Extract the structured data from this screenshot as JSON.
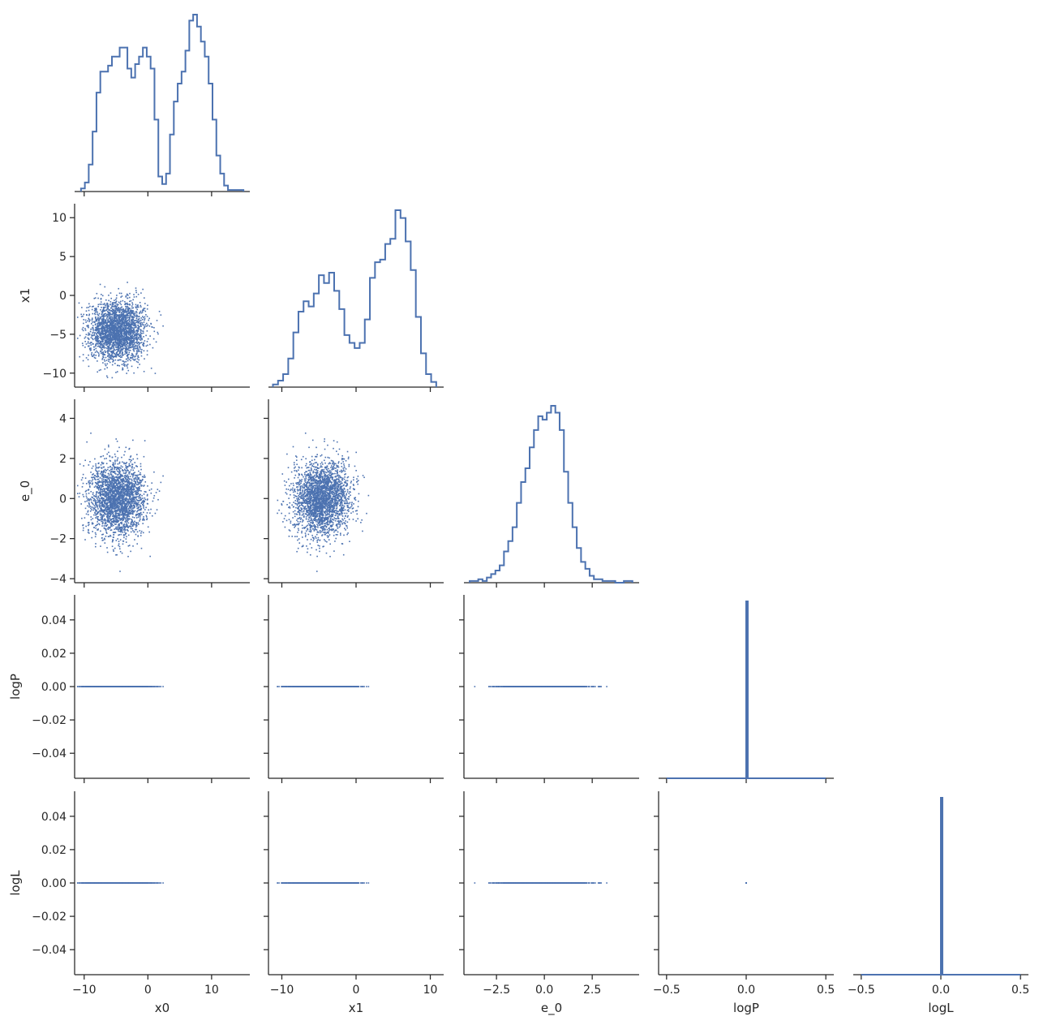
{
  "chart_data": {
    "type": "scatter",
    "title": "",
    "variables": [
      {
        "name": "x0",
        "lim": [
          -11.5,
          16.0
        ],
        "ticks": [
          -10,
          0,
          10
        ],
        "tick_labels": [
          "−10",
          "0",
          "10"
        ]
      },
      {
        "name": "x1",
        "lim": [
          -11.8,
          11.8
        ],
        "ticks": [
          -10,
          0,
          10
        ],
        "tick_labels": [
          "−10",
          "0",
          "10"
        ]
      },
      {
        "name": "e_0",
        "lim": [
          -4.2,
          4.95
        ],
        "ticks": [
          -2.5,
          0,
          2.5
        ],
        "tick_labels": [
          "−2.5",
          "0.0",
          "2.5"
        ]
      },
      {
        "name": "logP",
        "lim": [
          -0.55,
          0.55
        ],
        "ticks": [
          -0.5,
          0,
          0.5
        ],
        "tick_labels": [
          "−0.5",
          "0.0",
          "0.5"
        ]
      },
      {
        "name": "logL",
        "lim": [
          -0.55,
          0.55
        ],
        "ticks": [
          -0.5,
          0,
          0.5
        ],
        "tick_labels": [
          "−0.5",
          "0.0",
          "0.5"
        ]
      }
    ],
    "row_axes": [
      null,
      {
        "lim": [
          -11.8,
          11.8
        ],
        "ticks": [
          10,
          5,
          0,
          -5,
          -10
        ],
        "tick_labels": [
          "10",
          "5",
          "0",
          "−5",
          "−10"
        ]
      },
      {
        "lim": [
          -4.2,
          4.95
        ],
        "ticks": [
          4,
          2,
          0,
          -2,
          -4
        ],
        "tick_labels": [
          "4",
          "2",
          "0",
          "−2",
          "−4"
        ]
      },
      {
        "lim": [
          -0.055,
          0.055
        ],
        "ticks": [
          0.04,
          0.02,
          0,
          -0.02,
          -0.04
        ],
        "tick_labels": [
          "0.04",
          "0.02",
          "0.00",
          "−0.02",
          "−0.04"
        ]
      },
      {
        "lim": [
          -0.055,
          0.055
        ],
        "ticks": [
          0.04,
          0.02,
          0,
          -0.02,
          -0.04
        ],
        "tick_labels": [
          "0.04",
          "0.02",
          "0.00",
          "−0.02",
          "−0.04"
        ]
      }
    ],
    "histograms": {
      "x0": {
        "bin_edges_range": [
          -10.5,
          15.0
        ],
        "counts": [
          2,
          6,
          18,
          40,
          66,
          80,
          80,
          84,
          90,
          90,
          96,
          96,
          82,
          76,
          85,
          90,
          96,
          90,
          82,
          48,
          10,
          5,
          12,
          38,
          60,
          72,
          80,
          94,
          114,
          118,
          110,
          100,
          90,
          72,
          48,
          24,
          12,
          4,
          1,
          1,
          1,
          1
        ]
      },
      "x1": {
        "bin_edges_range": [
          -11.2,
          10.8
        ],
        "counts": [
          2,
          5,
          10,
          22,
          42,
          58,
          66,
          62,
          72,
          86,
          80,
          88,
          74,
          60,
          40,
          34,
          30,
          34,
          52,
          84,
          96,
          98,
          110,
          114,
          136,
          130,
          112,
          90,
          54,
          26,
          10,
          4
        ]
      },
      "e_0": {
        "bin_edges_range": [
          -3.9,
          4.6
        ],
        "counts": [
          1,
          1,
          2,
          1,
          3,
          5,
          7,
          10,
          18,
          24,
          32,
          46,
          58,
          66,
          78,
          88,
          96,
          94,
          98,
          102,
          98,
          88,
          64,
          46,
          32,
          20,
          12,
          8,
          4,
          2,
          2,
          1,
          1,
          1,
          0,
          0,
          1,
          1
        ]
      },
      "logP": {
        "bin_edges_range": [
          -0.5,
          0.5
        ],
        "counts": [
          0,
          0,
          0,
          0,
          0,
          0,
          0,
          0,
          0,
          0,
          0,
          0,
          0,
          0,
          0,
          0,
          0,
          0,
          0,
          0,
          0,
          0,
          0,
          0,
          0,
          0,
          0,
          0,
          0,
          0,
          0,
          0,
          0,
          0,
          0,
          0,
          0,
          0,
          0,
          0,
          0,
          0,
          0,
          0,
          0,
          0,
          0,
          0,
          0,
          0,
          5000,
          0,
          0,
          0,
          0,
          0,
          0,
          0,
          0,
          0,
          0,
          0,
          0,
          0,
          0,
          0,
          0,
          0,
          0,
          0,
          0,
          0,
          0,
          0,
          0,
          0,
          0,
          0,
          0,
          0,
          0,
          0,
          0,
          0,
          0,
          0,
          0,
          0,
          0,
          0,
          0,
          0,
          0,
          0,
          0,
          0,
          0,
          0,
          0,
          0
        ]
      },
      "logL": {
        "bin_edges_range": [
          -0.5,
          0.5
        ],
        "counts": [
          0,
          0,
          0,
          0,
          0,
          0,
          0,
          0,
          0,
          0,
          0,
          0,
          0,
          0,
          0,
          0,
          0,
          0,
          0,
          0,
          0,
          0,
          0,
          0,
          0,
          0,
          0,
          0,
          0,
          0,
          0,
          0,
          0,
          0,
          0,
          0,
          0,
          0,
          0,
          0,
          0,
          0,
          0,
          0,
          0,
          0,
          0,
          0,
          0,
          0,
          5000,
          0,
          0,
          0,
          0,
          0,
          0,
          0,
          0,
          0,
          0,
          0,
          0,
          0,
          0,
          0,
          0,
          0,
          0,
          0,
          0,
          0,
          0,
          0,
          0,
          0,
          0,
          0,
          0,
          0,
          0,
          0,
          0,
          0,
          0,
          0,
          0,
          0,
          0,
          0,
          0,
          0,
          0,
          0,
          0,
          0,
          0,
          0,
          0,
          0
        ]
      }
    },
    "samples": {
      "count": 5000,
      "clusters": [
        {
          "x0_mean": -4.8,
          "x0_sd": 2.2,
          "x1_mean": -4.6,
          "x1_sd": 1.9
        },
        {
          "x0_mean": 5.2,
          "x0_sd": 2.2,
          "x1_mean": 5.0,
          "x1_sd": 2.0
        }
      ],
      "e_0_mean": 0.0,
      "e_0_sd": 0.9,
      "logP_value": 0.0,
      "logL_value": 0.0
    },
    "colors": {
      "series": "#4c72b0",
      "axes": "#262626"
    },
    "grid": false,
    "legend": "none"
  }
}
